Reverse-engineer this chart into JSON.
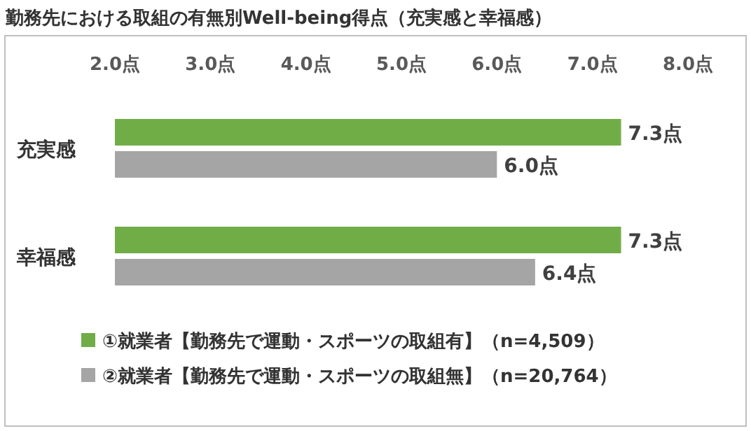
{
  "chart_data": {
    "type": "bar",
    "orientation": "horizontal",
    "title": "勤務先における取組の有無別Well-being得点（充実感と幸福感）",
    "categories": [
      "充実感",
      "幸福感"
    ],
    "series": [
      {
        "name": "①就業者【勤務先で運動・スポーツの取組有】（n=4,509）",
        "color": "#70ad47",
        "values": [
          7.3,
          7.3
        ],
        "value_labels": [
          "7.3点",
          "7.3点"
        ]
      },
      {
        "name": "②就業者【勤務先で運動・スポーツの取組無】（n=20,764）",
        "color": "#a5a5a5",
        "values": [
          6.0,
          6.4
        ],
        "value_labels": [
          "6.0点",
          "6.4点"
        ]
      }
    ],
    "xlim": [
      2,
      8
    ],
    "xticks": [
      {
        "value": 2,
        "label": "2.0点"
      },
      {
        "value": 3,
        "label": "3.0点"
      },
      {
        "value": 4,
        "label": "4.0点"
      },
      {
        "value": 5,
        "label": "5.0点"
      },
      {
        "value": 6,
        "label": "6.0点"
      },
      {
        "value": 7,
        "label": "7.0点"
      },
      {
        "value": 8,
        "label": "8.0点"
      }
    ],
    "legend": "bottom",
    "grid": false
  }
}
